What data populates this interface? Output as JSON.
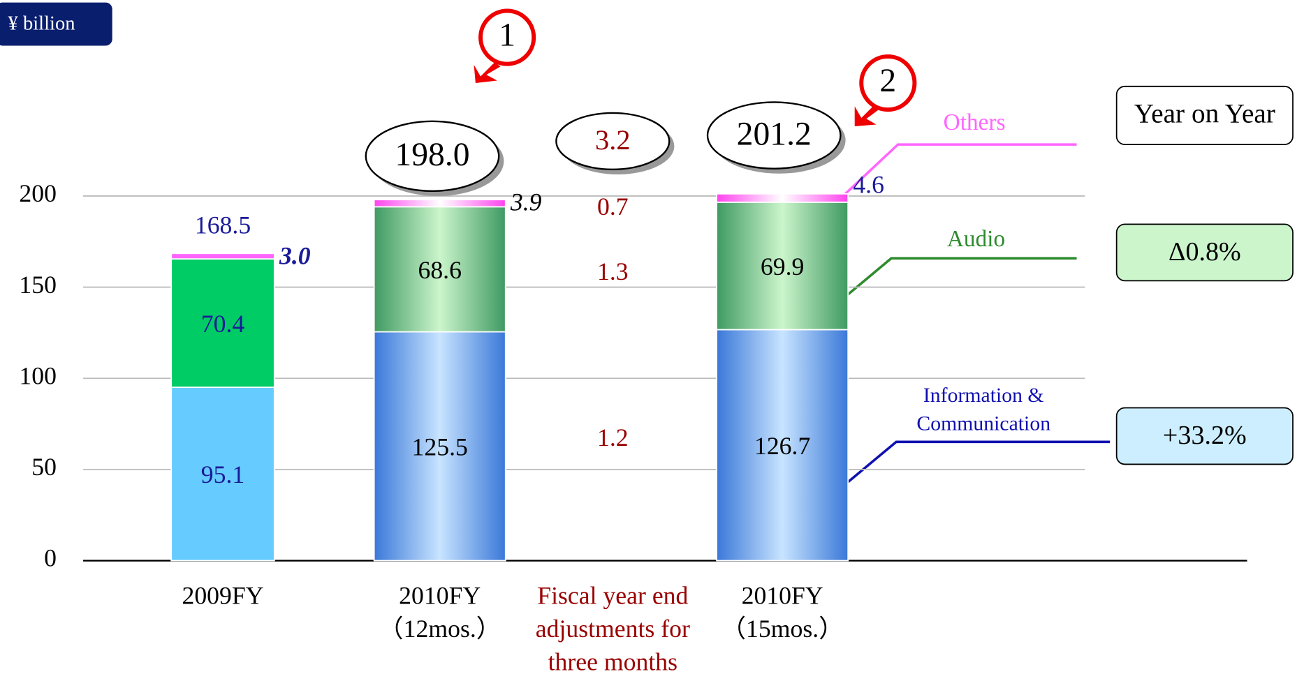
{
  "chart_data": {
    "type": "bar",
    "unit_label": "¥ billion",
    "categories": [
      [
        "2009FY"
      ],
      [
        "2010FY",
        "（12mos.）"
      ],
      [
        "Fiscal year end",
        "adjustments for",
        "three months"
      ],
      [
        "2010FY",
        "（15mos.）"
      ]
    ],
    "series": [
      {
        "name": [
          "Information &",
          "Communication"
        ],
        "color": "#1010b0",
        "colors": [
          "#66ccff",
          "#3a78d8",
          null,
          "#3a78d8"
        ],
        "values": [
          95.1,
          125.5,
          null,
          126.7
        ]
      },
      {
        "name": [
          "Audio"
        ],
        "color": "#2e8b2e",
        "colors": [
          "#00cc66",
          "#3f9a62",
          null,
          "#3f9a62"
        ],
        "values": [
          70.4,
          68.6,
          null,
          69.9
        ]
      },
      {
        "name": [
          "Others"
        ],
        "color": "#ff66ff",
        "colors": [
          "#ff66ff",
          "#ff55ee",
          null,
          "#ff55ee"
        ],
        "values": [
          3,
          3.9,
          null,
          4.6
        ],
        "value_labels": [
          "3.0",
          "3.9",
          null,
          "4.6"
        ]
      }
    ],
    "adjustments": [
      1.2,
      1.3,
      0.7
    ],
    "totals": [
      168.5,
      198,
      3.2,
      201.2
    ],
    "totals_labels": [
      "168.5",
      "198.0",
      "3.2",
      "201.2"
    ],
    "markers": [
      "1",
      "2"
    ],
    "year_on_year": {
      "title": "Year on Year",
      "audio": "Δ0.8%",
      "info": "+33.2%"
    },
    "ylim": [
      0,
      200
    ],
    "yticks": [
      0,
      50,
      100,
      150,
      200
    ],
    "grid": true
  }
}
